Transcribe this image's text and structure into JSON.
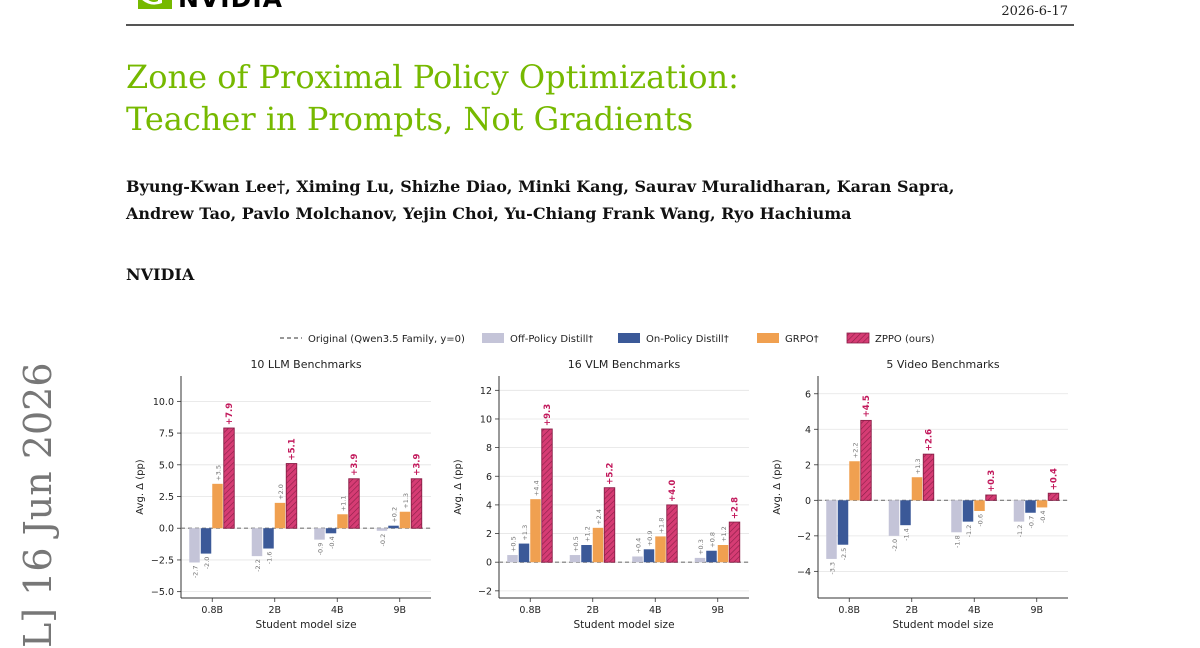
{
  "header": {
    "logo_text": "NVIDIA",
    "logo_icon": "nvidia-eye-logo",
    "date": "2026-6-17"
  },
  "paper": {
    "title_line1": "Zone of Proximal Policy Optimization:",
    "title_line2": "Teacher in Prompts, Not Gradients",
    "authors_line1": "Byung-Kwan Lee†, Ximing Lu, Shizhe Diao, Minki Kang, Saurav Muralidharan, Karan Sapra,",
    "authors_line2": "Andrew Tao, Pavlo Molchanov, Yejin Choi, Yu-Chiang Frank Wang, Ryo Hachiuma",
    "affiliation": "NVIDIA",
    "arxiv_stamp": "L] 16 Jun 2026"
  },
  "colors": {
    "title": "#76b900",
    "off_policy": "#c4c4d8",
    "on_policy": "#3b5998",
    "grpo": "#f0a050",
    "zppo": "#d63c74"
  },
  "legend": [
    {
      "key": "original",
      "label": "Original (Qwen3.5 Family, y=0)"
    },
    {
      "key": "off_policy",
      "label": "Off-Policy Distill†"
    },
    {
      "key": "on_policy",
      "label": "On-Policy Distill†"
    },
    {
      "key": "grpo",
      "label": "GRPO†"
    },
    {
      "key": "zppo",
      "label": "ZPPO (ours)"
    }
  ],
  "chart_data": [
    {
      "type": "bar",
      "title": "10 LLM Benchmarks",
      "xlabel": "Student model size",
      "ylabel": "Avg. Δ (pp)",
      "categories": [
        "0.8B",
        "2B",
        "4B",
        "9B"
      ],
      "ylim": [
        -5.5,
        12
      ],
      "yticks": [
        -5.0,
        -2.5,
        0.0,
        2.5,
        5.0,
        7.5,
        10.0
      ],
      "ytick_labels": [
        "−5.0",
        "−2.5",
        "0.0",
        "2.5",
        "5.0",
        "7.5",
        "10.0"
      ],
      "series": [
        {
          "name": "Off-Policy Distill†",
          "key": "off_policy",
          "values": [
            -2.7,
            -2.2,
            -0.9,
            -0.2
          ],
          "labels": [
            "-2.7",
            "-2.2",
            "-0.9",
            "-0.2"
          ]
        },
        {
          "name": "On-Policy Distill†",
          "key": "on_policy",
          "values": [
            -2.0,
            -1.6,
            -0.4,
            0.2
          ],
          "labels": [
            "-2.0",
            "-1.6",
            "-0.4",
            "+0.2"
          ]
        },
        {
          "name": "GRPO†",
          "key": "grpo",
          "values": [
            3.5,
            2.0,
            1.1,
            1.3
          ],
          "labels": [
            "+3.5",
            "+2.0",
            "+1.1",
            "+1.3"
          ]
        },
        {
          "name": "ZPPO (ours)",
          "key": "zppo",
          "values": [
            7.9,
            5.1,
            3.9,
            3.9
          ],
          "labels": [
            "+7.9",
            "+5.1",
            "+3.9",
            "+3.9"
          ]
        }
      ]
    },
    {
      "type": "bar",
      "title": "16 VLM Benchmarks",
      "xlabel": "Student model size",
      "ylabel": "Avg. Δ (pp)",
      "categories": [
        "0.8B",
        "2B",
        "4B",
        "9B"
      ],
      "ylim": [
        -2.5,
        13
      ],
      "yticks": [
        -2,
        0,
        2,
        4,
        6,
        8,
        10,
        12
      ],
      "ytick_labels": [
        "−2",
        "0",
        "2",
        "4",
        "6",
        "8",
        "10",
        "12"
      ],
      "series": [
        {
          "name": "Off-Policy Distill†",
          "key": "off_policy",
          "values": [
            0.5,
            0.5,
            0.4,
            0.3
          ],
          "labels": [
            "+0.5",
            "+0.5",
            "+0.4",
            "+0.3"
          ]
        },
        {
          "name": "On-Policy Distill†",
          "key": "on_policy",
          "values": [
            1.3,
            1.2,
            0.9,
            0.8
          ],
          "labels": [
            "+1.3",
            "+1.2",
            "+0.9",
            "+0.8"
          ]
        },
        {
          "name": "GRPO†",
          "key": "grpo",
          "values": [
            4.4,
            2.4,
            1.8,
            1.2
          ],
          "labels": [
            "+4.4",
            "+2.4",
            "+1.8",
            "+1.2"
          ]
        },
        {
          "name": "ZPPO (ours)",
          "key": "zppo",
          "values": [
            9.3,
            5.2,
            4.0,
            2.8
          ],
          "labels": [
            "+9.3",
            "+5.2",
            "+4.0",
            "+2.8"
          ]
        }
      ]
    },
    {
      "type": "bar",
      "title": "5 Video Benchmarks",
      "xlabel": "Student model size",
      "ylabel": "Avg. Δ (pp)",
      "categories": [
        "0.8B",
        "2B",
        "4B",
        "9B"
      ],
      "ylim": [
        -5.5,
        7
      ],
      "yticks": [
        -4,
        -2,
        0,
        2,
        4,
        6
      ],
      "ytick_labels": [
        "−4",
        "−2",
        "0",
        "2",
        "4",
        "6"
      ],
      "series": [
        {
          "name": "Off-Policy Distill†",
          "key": "off_policy",
          "values": [
            -3.3,
            -2.0,
            -1.8,
            -1.2
          ],
          "labels": [
            "-3.3",
            "-2.0",
            "-1.8",
            "-1.2"
          ]
        },
        {
          "name": "On-Policy Distill†",
          "key": "on_policy",
          "values": [
            -2.5,
            -1.4,
            -1.2,
            -0.7
          ],
          "labels": [
            "-2.5",
            "-1.4",
            "-1.2",
            "-0.7"
          ]
        },
        {
          "name": "GRPO†",
          "key": "grpo",
          "values": [
            2.2,
            1.3,
            -0.6,
            -0.4
          ],
          "labels": [
            "+2.2",
            "+1.3",
            "-0.6",
            "-0.4"
          ]
        },
        {
          "name": "ZPPO (ours)",
          "key": "zppo",
          "values": [
            4.5,
            2.6,
            0.3,
            0.4
          ],
          "labels": [
            "+4.5",
            "+2.6",
            "+0.3",
            "+0.4"
          ]
        }
      ]
    }
  ]
}
